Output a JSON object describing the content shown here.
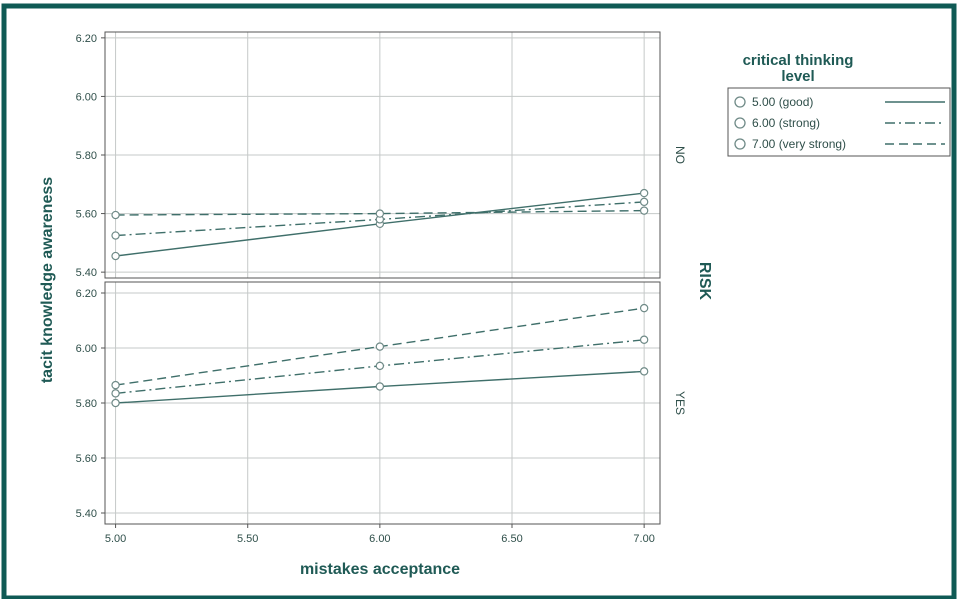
{
  "chart_data": {
    "type": "line",
    "xlabel": "mistakes acceptance",
    "ylabel": "tacit knowledge awareness",
    "x_ticks": [
      "5.00",
      "5.50",
      "6.00",
      "6.50",
      "7.00"
    ],
    "xlim": [
      4.96,
      7.06
    ],
    "facet_title": "RISK",
    "legend_title": [
      "critical thinking",
      "level"
    ],
    "legend_position": "top-right",
    "grid": true,
    "colors": {
      "line": "#3f6f6a",
      "border": "#0f5a55",
      "grid": "#c5c9c8"
    },
    "panels": [
      {
        "label": "NO",
        "ylim": [
          5.38,
          6.22
        ],
        "y_ticks": [
          "5.40",
          "5.60",
          "5.80",
          "6.00",
          "6.20"
        ],
        "series": [
          {
            "name": "5.00 (good)",
            "dash": "solid",
            "x": [
              5,
              6,
              7
            ],
            "y": [
              5.455,
              5.565,
              5.67
            ]
          },
          {
            "name": "6.00 (strong)",
            "dash": "dashdot",
            "x": [
              5,
              6,
              7
            ],
            "y": [
              5.525,
              5.58,
              5.64
            ]
          },
          {
            "name": "7.00 (very strong)",
            "dash": "dashed",
            "x": [
              5,
              6,
              7
            ],
            "y": [
              5.595,
              5.6,
              5.61
            ]
          }
        ]
      },
      {
        "label": "YES",
        "ylim": [
          5.36,
          6.24
        ],
        "y_ticks": [
          "5.40",
          "5.60",
          "5.80",
          "6.00",
          "6.20"
        ],
        "series": [
          {
            "name": "5.00 (good)",
            "dash": "solid",
            "x": [
              5,
              6,
              7
            ],
            "y": [
              5.8,
              5.86,
              5.915
            ]
          },
          {
            "name": "6.00 (strong)",
            "dash": "dashdot",
            "x": [
              5,
              6,
              7
            ],
            "y": [
              5.835,
              5.935,
              6.03
            ]
          },
          {
            "name": "7.00 (very strong)",
            "dash": "dashed",
            "x": [
              5,
              6,
              7
            ],
            "y": [
              5.865,
              6.005,
              6.145
            ]
          }
        ]
      }
    ]
  }
}
